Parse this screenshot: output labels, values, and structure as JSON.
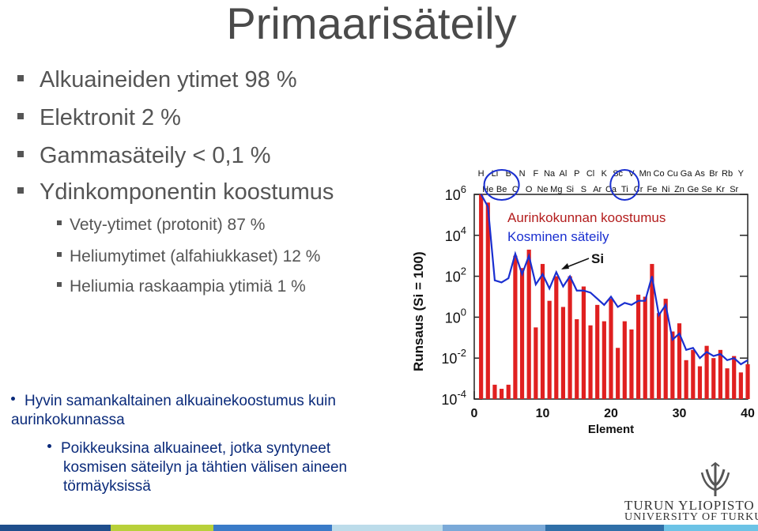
{
  "title": "Primaarisäteily",
  "bullets": [
    "Alkuaineiden ytimet 98 %",
    "Elektronit 2 %",
    "Gammasäteily < 0,1 %",
    "Ydinkomponentin koostumus"
  ],
  "sub_bullets": [
    "Vety-ytimet (protonit) 87 %",
    "Heliumytimet (alfahiukkaset) 12 %",
    "Heliumia raskaampia ytimiä 1 %"
  ],
  "text_bullet": [
    "Hyvin samankaltainen alkuainekoostumus kuin",
    "aurinkokunnassa"
  ],
  "text_sub_bullet": [
    "Poikkeuksina alkuaineet, jotka syntyneet",
    "kosmisen säteilyn ja tähtien välisen aineen",
    "törmäyksissä"
  ],
  "logo": {
    "line1": "TURUN YLIOPISTO",
    "line2": "UNIVERSITY OF TURKU"
  },
  "colors": {
    "bar": "#e02020",
    "line": "#1a2fd0",
    "circle": "#1a2fd0",
    "legend1": "#b31d1d",
    "legend2": "#1a2fd0",
    "text_blue": "#0a2a7a"
  },
  "chart_data": {
    "type": "bar",
    "xlabel": "Element",
    "ylabel": "Runsaus (Si = 100)",
    "yscale": "log",
    "ylim_exp": [
      -4,
      6
    ],
    "xlim": [
      0,
      40
    ],
    "x_ticks": [
      "0",
      "10",
      "20",
      "30",
      "40"
    ],
    "y_tick_exponents": [
      "6",
      "4",
      "2",
      "0",
      "-2",
      "-4"
    ],
    "element_labels_top": [
      "H",
      "Li",
      "B",
      "N",
      "F",
      "Na",
      "Al",
      "P",
      "Cl",
      "K",
      "Sc",
      "V",
      "Mn",
      "Co",
      "Cu",
      "Ga",
      "As",
      "Br",
      "Rb",
      "Y"
    ],
    "element_labels_bottom": [
      "He",
      "Be",
      "C",
      "O",
      "Ne",
      "Mg",
      "Si",
      "S",
      "Ar",
      "Ca",
      "Ti",
      "Cr",
      "Fe",
      "Ni",
      "Zn",
      "Ge",
      "Se",
      "Kr",
      "Sr"
    ],
    "series": [
      {
        "name": "Aurinkokunnan koostumus",
        "x": [
          1,
          2,
          3,
          4,
          5,
          6,
          7,
          8,
          9,
          10,
          11,
          12,
          13,
          14,
          15,
          16,
          17,
          18,
          19,
          20,
          21,
          22,
          23,
          24,
          25,
          26,
          27,
          28,
          29,
          30,
          31,
          32,
          33,
          34,
          35,
          36,
          37,
          38,
          39,
          40
        ],
        "values": [
          6.6,
          5.6,
          -3.3,
          -3.5,
          -3.3,
          3.0,
          2.4,
          3.3,
          -0.5,
          2.6,
          0.8,
          2.0,
          0.5,
          2.0,
          -0.1,
          1.5,
          -0.4,
          0.6,
          -0.2,
          0.9,
          -1.5,
          -0.2,
          -0.6,
          1.1,
          1.0,
          2.6,
          0.2,
          0.9,
          -0.7,
          -0.3,
          -2.1,
          -1.6,
          -2.4,
          -1.4,
          -2.0,
          -1.6,
          -2.5,
          -1.9,
          -2.7,
          -2.3
        ]
      },
      {
        "name": "Kosminen säteily",
        "x": [
          1,
          2,
          3,
          4,
          5,
          6,
          7,
          8,
          9,
          10,
          11,
          12,
          13,
          14,
          15,
          16,
          17,
          18,
          19,
          20,
          21,
          22,
          23,
          24,
          25,
          26,
          27,
          28,
          29,
          30,
          31,
          32,
          33,
          34,
          35,
          36,
          37,
          38,
          39,
          40
        ],
        "values": [
          6.6,
          5.4,
          1.8,
          1.7,
          1.9,
          3.1,
          2.1,
          3.0,
          1.6,
          2.1,
          1.4,
          2.2,
          1.5,
          2.0,
          1.3,
          1.3,
          1.2,
          0.9,
          0.6,
          1.0,
          0.5,
          0.7,
          0.6,
          0.8,
          0.8,
          2.0,
          0.1,
          0.6,
          -1.1,
          -0.8,
          -1.6,
          -1.5,
          -2.0,
          -1.7,
          -1.9,
          -1.8,
          -2.1,
          -2.0,
          -2.3,
          -2.1
        ]
      }
    ],
    "annotation": "Si"
  }
}
